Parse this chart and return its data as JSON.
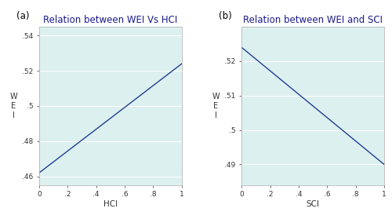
{
  "panel_a": {
    "title": "Relation between WEI Vs HCI",
    "xlabel": "HCI",
    "ylabel": "W\nE\nI",
    "line_x": [
      0.0,
      1.0
    ],
    "line_y": [
      0.462,
      0.524
    ],
    "xlim": [
      0.0,
      1.0
    ],
    "ylim": [
      0.455,
      0.545
    ],
    "xticks": [
      0,
      0.2,
      0.4,
      0.6,
      0.8,
      1.0
    ],
    "yticks": [
      0.46,
      0.48,
      0.5,
      0.52,
      0.54
    ],
    "xticklabels": [
      "0",
      ".2",
      ".4",
      ".6",
      ".8",
      "1"
    ],
    "yticklabels": [
      ".46",
      ".48",
      ".5",
      ".52",
      ".54"
    ],
    "label": "(a)"
  },
  "panel_b": {
    "title": "Relation between WEI and SCI",
    "xlabel": "SCI",
    "ylabel": "W\nE\nI",
    "line_x": [
      0.0,
      1.0
    ],
    "line_y": [
      0.524,
      0.49
    ],
    "xlim": [
      0.0,
      1.0
    ],
    "ylim": [
      0.484,
      0.53
    ],
    "xticks": [
      0,
      0.2,
      0.4,
      0.6,
      0.8,
      1.0
    ],
    "yticks": [
      0.49,
      0.5,
      0.51,
      0.52
    ],
    "xticklabels": [
      "0",
      ".2",
      ".4",
      ".6",
      ".8",
      "1"
    ],
    "yticklabels": [
      ".49",
      ".5",
      ".51",
      ".52"
    ],
    "label": "(b)"
  },
  "line_color": "#1f3f8f",
  "bg_color": "#ddf0f0",
  "outer_bg": "#ffffff",
  "grid_color": "#ffffff",
  "title_color": "#1a1a8a",
  "tick_color": "#333333",
  "title_fontsize": 8.5,
  "tick_fontsize": 6.5,
  "label_fontsize": 7.5,
  "ylabel_fontsize": 7,
  "line_width": 1.0
}
